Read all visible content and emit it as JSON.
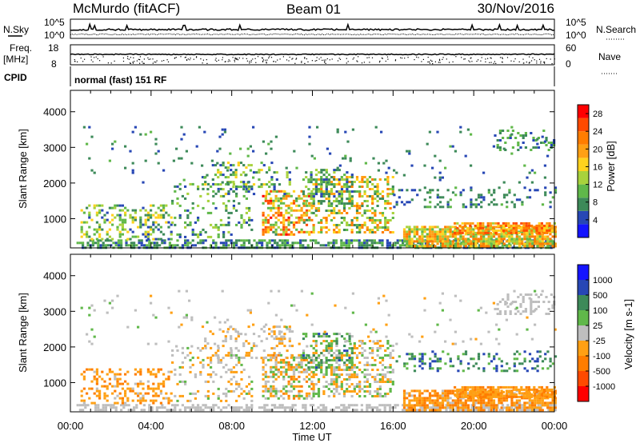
{
  "header": {
    "station": "McMurdo (fitACF)",
    "beam": "Beam 01",
    "date": "30/Nov/2016"
  },
  "noise_panel": {
    "left_label": "N.Sky",
    "left_top": "10^5",
    "left_bottom": "10^0",
    "right_label": "N.Search",
    "right_top": "10^5",
    "right_bottom": "10^0"
  },
  "freq_panel": {
    "left_label_1": "Freq.",
    "left_label_2": "[MHz]",
    "left_top": "18",
    "left_bottom": "8",
    "right_label": "Nave",
    "right_top": "60",
    "right_bottom": "0"
  },
  "cpid_panel": {
    "label": "CPID",
    "text": "normal (fast) 151 RF"
  },
  "chart_data": [
    {
      "type": "heatmap",
      "name": "power",
      "ylabel": "Slant Range [km]",
      "xlabel": "Time UT",
      "ylim": [
        180,
        4600
      ],
      "yticks": [
        1000,
        2000,
        3000,
        4000
      ],
      "xlim_hours": [
        0,
        24
      ],
      "colorbar_label": "Power [dB]",
      "colorbar_ticks": [
        "4",
        "8",
        "12",
        "16",
        "20",
        "24",
        "28"
      ],
      "colorbar_range": [
        0,
        30
      ],
      "colors": [
        "#1414ff",
        "#2747b5",
        "#3d8a59",
        "#60b84a",
        "#a8d23c",
        "#ffd21e",
        "#ffa014",
        "#ff7d00",
        "#ff4a00",
        "#ff0000"
      ],
      "echo_regions": [
        {
          "t0": 0.3,
          "t1": 24,
          "r0": 200,
          "r1": 420,
          "v0": 4,
          "v1": 12,
          "dens": 0.62
        },
        {
          "t0": 16.5,
          "t1": 24,
          "r0": 250,
          "r1": 800,
          "v0": 10,
          "v1": 24,
          "dens": 0.8
        },
        {
          "t0": 19,
          "t1": 24,
          "r0": 620,
          "r1": 900,
          "v0": 14,
          "v1": 26,
          "dens": 0.75
        },
        {
          "t0": 0.5,
          "t1": 5,
          "r0": 450,
          "r1": 1400,
          "v0": 4,
          "v1": 18,
          "dens": 0.35
        },
        {
          "t0": 5,
          "t1": 9,
          "r0": 500,
          "r1": 2000,
          "v0": 4,
          "v1": 14,
          "dens": 0.18
        },
        {
          "t0": 9.5,
          "t1": 12,
          "r0": 550,
          "r1": 1800,
          "v0": 8,
          "v1": 28,
          "dens": 0.5
        },
        {
          "t0": 12,
          "t1": 16,
          "r0": 650,
          "r1": 2200,
          "v0": 6,
          "v1": 24,
          "dens": 0.38
        },
        {
          "t0": 6.5,
          "t1": 11,
          "r0": 1700,
          "r1": 2600,
          "v0": 4,
          "v1": 16,
          "dens": 0.22
        },
        {
          "t0": 11.5,
          "t1": 14,
          "r0": 1400,
          "r1": 2400,
          "v0": 4,
          "v1": 14,
          "dens": 0.32
        },
        {
          "t0": 16,
          "t1": 24,
          "r0": 1300,
          "r1": 1900,
          "v0": 4,
          "v1": 10,
          "dens": 0.22
        },
        {
          "t0": 21,
          "t1": 24,
          "r0": 2900,
          "r1": 3500,
          "v0": 4,
          "v1": 12,
          "dens": 0.28
        },
        {
          "t0": 0.5,
          "t1": 24,
          "r0": 2000,
          "r1": 3600,
          "v0": 4,
          "v1": 10,
          "dens": 0.025
        }
      ]
    },
    {
      "type": "heatmap",
      "name": "velocity",
      "ylabel": "Slant Range [km]",
      "xlabel": "Time UT",
      "ylim": [
        180,
        4600
      ],
      "yticks": [
        1000,
        2000,
        3000,
        4000
      ],
      "xlim_hours": [
        0,
        24
      ],
      "xticks": [
        "00:00",
        "04:00",
        "08:00",
        "12:00",
        "16:00",
        "20:00",
        "00:00"
      ],
      "colorbar_label": "Velocity [m s-1]",
      "colorbar_ticks": [
        "1000",
        "500",
        "100",
        "25",
        "-25",
        "-100",
        "-500",
        "-1000"
      ],
      "colorbar_range": [
        -1200,
        1200
      ],
      "colors": [
        "#ff0000",
        "#ff4a00",
        "#ff7d00",
        "#ffa014",
        "#bebebe",
        "#60b84a",
        "#3d8a59",
        "#2747b5",
        "#1414ff"
      ],
      "echo_regions": [
        {
          "t0": 0.3,
          "t1": 24,
          "r0": 200,
          "r1": 400,
          "v0": -60,
          "v1": 60,
          "dens": 0.55
        },
        {
          "t0": 16.5,
          "t1": 24,
          "r0": 250,
          "r1": 800,
          "v0": -600,
          "v1": -80,
          "dens": 0.75
        },
        {
          "t0": 19,
          "t1": 24,
          "r0": 620,
          "r1": 900,
          "v0": -500,
          "v1": -150,
          "dens": 0.7
        },
        {
          "t0": 0.5,
          "t1": 5,
          "r0": 450,
          "r1": 1400,
          "v0": -500,
          "v1": -80,
          "dens": 0.35
        },
        {
          "t0": 5,
          "t1": 9,
          "r0": 500,
          "r1": 2000,
          "v0": -300,
          "v1": 200,
          "dens": 0.18
        },
        {
          "t0": 9.5,
          "t1": 12,
          "r0": 550,
          "r1": 1800,
          "v0": -500,
          "v1": 300,
          "dens": 0.5
        },
        {
          "t0": 12,
          "t1": 16,
          "r0": 650,
          "r1": 2200,
          "v0": -400,
          "v1": 400,
          "dens": 0.38
        },
        {
          "t0": 6.5,
          "t1": 11,
          "r0": 1700,
          "r1": 2600,
          "v0": -300,
          "v1": 50,
          "dens": 0.22
        },
        {
          "t0": 11.5,
          "t1": 14,
          "r0": 1400,
          "r1": 2400,
          "v0": 100,
          "v1": 700,
          "dens": 0.32
        },
        {
          "t0": 16,
          "t1": 24,
          "r0": 1300,
          "r1": 1900,
          "v0": 200,
          "v1": 900,
          "dens": 0.22
        },
        {
          "t0": 21,
          "t1": 24,
          "r0": 2900,
          "r1": 3500,
          "v0": -40,
          "v1": 40,
          "dens": 0.28
        },
        {
          "t0": 0.5,
          "t1": 24,
          "r0": 2000,
          "r1": 3600,
          "v0": -200,
          "v1": 200,
          "dens": 0.025
        }
      ]
    }
  ]
}
